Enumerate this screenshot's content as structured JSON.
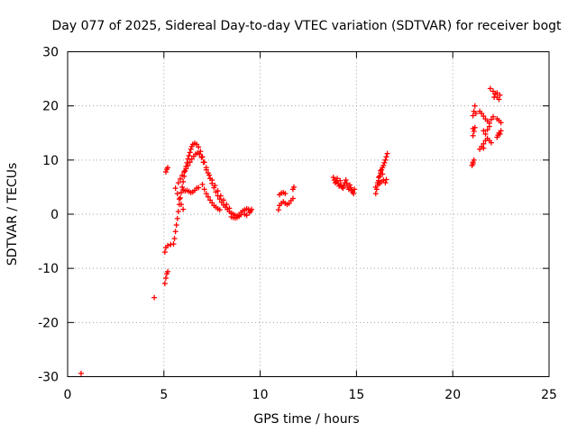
{
  "chart_data": {
    "type": "scatter",
    "title": "Day 077 of 2025, Sidereal Day-to-day VTEC variation (SDTVAR) for receiver bogt",
    "xlabel": "GPS time / hours",
    "ylabel": "SDTVAR / TECUs",
    "xlim": [
      0,
      25
    ],
    "ylim": [
      -30,
      30
    ],
    "xticks": [
      0,
      5,
      10,
      15,
      20,
      25
    ],
    "yticks": [
      -30,
      -20,
      -10,
      0,
      10,
      20,
      30
    ],
    "xtick_labels": [
      "0",
      "5",
      "10",
      "15",
      "20",
      "25"
    ],
    "ytick_labels": [
      "-30",
      "-20",
      "-10",
      "0",
      "10",
      "20",
      "30"
    ],
    "grid": true,
    "marker": "+",
    "marker_color": "#ff0000",
    "series": [
      {
        "name": "SDTVAR",
        "points": [
          [
            0.7,
            -29.4
          ],
          [
            4.5,
            -15.4
          ],
          [
            5.05,
            -12.8
          ],
          [
            5.1,
            -11.8
          ],
          [
            5.15,
            -11.0
          ],
          [
            5.2,
            -10.6
          ],
          [
            5.05,
            -7.0
          ],
          [
            5.1,
            -6.2
          ],
          [
            5.2,
            -5.8
          ],
          [
            5.35,
            -5.6
          ],
          [
            5.1,
            7.8
          ],
          [
            5.15,
            8.3
          ],
          [
            5.2,
            8.6
          ],
          [
            5.5,
            -5.5
          ],
          [
            5.55,
            -4.5
          ],
          [
            5.6,
            -3.2
          ],
          [
            5.65,
            -2.0
          ],
          [
            5.7,
            -0.8
          ],
          [
            5.75,
            0.5
          ],
          [
            5.8,
            1.8
          ],
          [
            5.85,
            3.0
          ],
          [
            5.9,
            4.0
          ],
          [
            5.95,
            5.0
          ],
          [
            6.0,
            6.0
          ],
          [
            6.05,
            7.0
          ],
          [
            6.1,
            8.0
          ],
          [
            6.15,
            8.8
          ],
          [
            6.2,
            9.5
          ],
          [
            6.25,
            10.2
          ],
          [
            6.3,
            10.8
          ],
          [
            6.35,
            11.4
          ],
          [
            6.4,
            12.0
          ],
          [
            6.45,
            12.5
          ],
          [
            6.5,
            12.9
          ],
          [
            6.6,
            13.1
          ],
          [
            6.7,
            12.9
          ],
          [
            6.8,
            12.4
          ],
          [
            6.9,
            11.6
          ],
          [
            7.0,
            10.6
          ],
          [
            7.1,
            9.6
          ],
          [
            7.2,
            8.6
          ],
          [
            7.3,
            7.6
          ],
          [
            7.4,
            6.6
          ],
          [
            7.5,
            5.7
          ],
          [
            7.6,
            4.9
          ],
          [
            7.7,
            4.1
          ],
          [
            7.8,
            3.4
          ],
          [
            7.9,
            2.8
          ],
          [
            8.0,
            2.2
          ],
          [
            8.1,
            1.7
          ],
          [
            8.2,
            1.3
          ],
          [
            8.3,
            0.9
          ],
          [
            8.4,
            0.5
          ],
          [
            8.5,
            0.2
          ],
          [
            8.6,
            0.0
          ],
          [
            8.7,
            -0.2
          ],
          [
            8.8,
            -0.3
          ],
          [
            8.9,
            -0.4
          ],
          [
            9.0,
            -0.1
          ],
          [
            5.6,
            4.8
          ],
          [
            5.7,
            3.8
          ],
          [
            5.8,
            2.8
          ],
          [
            5.9,
            1.8
          ],
          [
            6.0,
            0.9
          ],
          [
            5.75,
            5.8
          ],
          [
            5.85,
            6.5
          ],
          [
            5.95,
            7.2
          ],
          [
            6.05,
            7.8
          ],
          [
            6.15,
            8.4
          ],
          [
            6.25,
            9.0
          ],
          [
            6.35,
            9.6
          ],
          [
            6.45,
            10.2
          ],
          [
            6.55,
            10.7
          ],
          [
            6.65,
            11.1
          ],
          [
            6.75,
            11.3
          ],
          [
            6.85,
            11.1
          ],
          [
            6.95,
            10.5
          ],
          [
            7.05,
            9.6
          ],
          [
            6.0,
            4.5
          ],
          [
            6.1,
            4.3
          ],
          [
            6.2,
            4.4
          ],
          [
            6.3,
            4.2
          ],
          [
            6.4,
            4.0
          ],
          [
            6.5,
            4.1
          ],
          [
            6.6,
            4.4
          ],
          [
            6.7,
            4.8
          ],
          [
            6.8,
            4.9
          ],
          [
            7.0,
            5.5
          ],
          [
            7.1,
            4.6
          ],
          [
            7.2,
            3.8
          ],
          [
            7.3,
            3.2
          ],
          [
            7.4,
            2.6
          ],
          [
            7.5,
            2.1
          ],
          [
            7.6,
            1.6
          ],
          [
            7.7,
            1.3
          ],
          [
            7.8,
            1.0
          ],
          [
            7.9,
            0.8
          ],
          [
            7.2,
            8.2
          ],
          [
            7.35,
            7.2
          ],
          [
            7.5,
            6.3
          ],
          [
            7.65,
            5.3
          ],
          [
            7.8,
            4.3
          ],
          [
            7.95,
            3.4
          ],
          [
            8.1,
            2.6
          ],
          [
            8.25,
            1.8
          ],
          [
            8.4,
            1.1
          ],
          [
            8.5,
            -0.5
          ],
          [
            8.6,
            -0.6
          ],
          [
            8.7,
            -0.7
          ],
          [
            8.8,
            -0.6
          ],
          [
            8.9,
            -0.2
          ],
          [
            9.0,
            0.3
          ],
          [
            9.1,
            0.6
          ],
          [
            9.2,
            0.8
          ],
          [
            9.3,
            1.0
          ],
          [
            9.4,
            0.9
          ],
          [
            9.5,
            0.6
          ],
          [
            9.2,
            0.0
          ],
          [
            9.3,
            -0.2
          ],
          [
            9.45,
            0.3
          ],
          [
            9.55,
            0.9
          ],
          [
            10.95,
            0.8
          ],
          [
            11.0,
            1.6
          ],
          [
            11.1,
            2.0
          ],
          [
            11.2,
            2.3
          ],
          [
            11.3,
            2.0
          ],
          [
            11.4,
            1.8
          ],
          [
            11.5,
            2.0
          ],
          [
            11.6,
            2.5
          ],
          [
            11.7,
            2.9
          ],
          [
            11.0,
            3.6
          ],
          [
            11.1,
            3.9
          ],
          [
            11.2,
            4.0
          ],
          [
            11.3,
            3.8
          ],
          [
            11.7,
            4.6
          ],
          [
            11.75,
            5.0
          ],
          [
            13.8,
            6.8
          ],
          [
            13.85,
            6.3
          ],
          [
            13.9,
            5.8
          ],
          [
            13.95,
            6.0
          ],
          [
            14.0,
            6.6
          ],
          [
            14.05,
            5.6
          ],
          [
            14.1,
            5.2
          ],
          [
            14.15,
            6.2
          ],
          [
            14.2,
            5.4
          ],
          [
            14.25,
            5.0
          ],
          [
            14.3,
            4.8
          ],
          [
            14.35,
            5.3
          ],
          [
            14.4,
            5.8
          ],
          [
            14.45,
            6.3
          ],
          [
            14.5,
            5.7
          ],
          [
            14.55,
            5.0
          ],
          [
            14.6,
            4.6
          ],
          [
            14.65,
            5.4
          ],
          [
            14.7,
            4.9
          ],
          [
            14.75,
            4.4
          ],
          [
            14.8,
            4.1
          ],
          [
            14.85,
            3.8
          ],
          [
            14.9,
            4.6
          ],
          [
            16.0,
            3.8
          ],
          [
            16.05,
            4.6
          ],
          [
            16.1,
            5.4
          ],
          [
            16.15,
            6.2
          ],
          [
            16.2,
            7.0
          ],
          [
            16.25,
            7.6
          ],
          [
            16.3,
            8.2
          ],
          [
            16.35,
            8.6
          ],
          [
            16.4,
            9.0
          ],
          [
            16.45,
            9.5
          ],
          [
            16.5,
            10.0
          ],
          [
            16.55,
            10.6
          ],
          [
            16.6,
            11.2
          ],
          [
            16.0,
            5.0
          ],
          [
            16.1,
            5.8
          ],
          [
            16.2,
            5.6
          ],
          [
            16.3,
            6.0
          ],
          [
            16.4,
            6.3
          ],
          [
            16.5,
            5.8
          ],
          [
            16.55,
            6.4
          ],
          [
            16.15,
            6.8
          ],
          [
            16.25,
            8.0
          ],
          [
            16.35,
            7.4
          ],
          [
            21.0,
            9.0
          ],
          [
            21.05,
            9.6
          ],
          [
            21.1,
            10.0
          ],
          [
            21.05,
            9.3
          ],
          [
            21.05,
            14.5
          ],
          [
            21.1,
            15.3
          ],
          [
            21.15,
            16.0
          ],
          [
            21.05,
            15.8
          ],
          [
            21.05,
            18.2
          ],
          [
            21.1,
            19.0
          ],
          [
            21.15,
            20.0
          ],
          [
            21.2,
            18.6
          ],
          [
            21.4,
            12.0
          ],
          [
            21.5,
            12.5
          ],
          [
            21.6,
            13.0
          ],
          [
            21.7,
            13.6
          ],
          [
            21.8,
            14.0
          ],
          [
            21.9,
            13.6
          ],
          [
            22.0,
            13.2
          ],
          [
            21.6,
            12.2
          ],
          [
            21.4,
            19.0
          ],
          [
            21.5,
            18.6
          ],
          [
            21.6,
            18.1
          ],
          [
            21.7,
            17.6
          ],
          [
            21.8,
            17.2
          ],
          [
            21.9,
            16.8
          ],
          [
            22.0,
            17.5
          ],
          [
            22.1,
            18.0
          ],
          [
            21.6,
            15.4
          ],
          [
            21.7,
            14.8
          ],
          [
            21.8,
            15.6
          ],
          [
            21.9,
            16.2
          ],
          [
            21.95,
            23.2
          ],
          [
            22.1,
            22.7
          ],
          [
            22.2,
            22.2
          ],
          [
            22.3,
            21.6
          ],
          [
            22.4,
            21.2
          ],
          [
            22.15,
            21.6
          ],
          [
            22.3,
            22.4
          ],
          [
            22.45,
            22.0
          ],
          [
            22.3,
            17.6
          ],
          [
            22.4,
            17.3
          ],
          [
            22.5,
            16.9
          ],
          [
            22.3,
            14.2
          ],
          [
            22.35,
            14.6
          ],
          [
            22.4,
            15.0
          ],
          [
            22.5,
            15.4
          ],
          [
            22.45,
            14.8
          ]
        ]
      }
    ]
  }
}
